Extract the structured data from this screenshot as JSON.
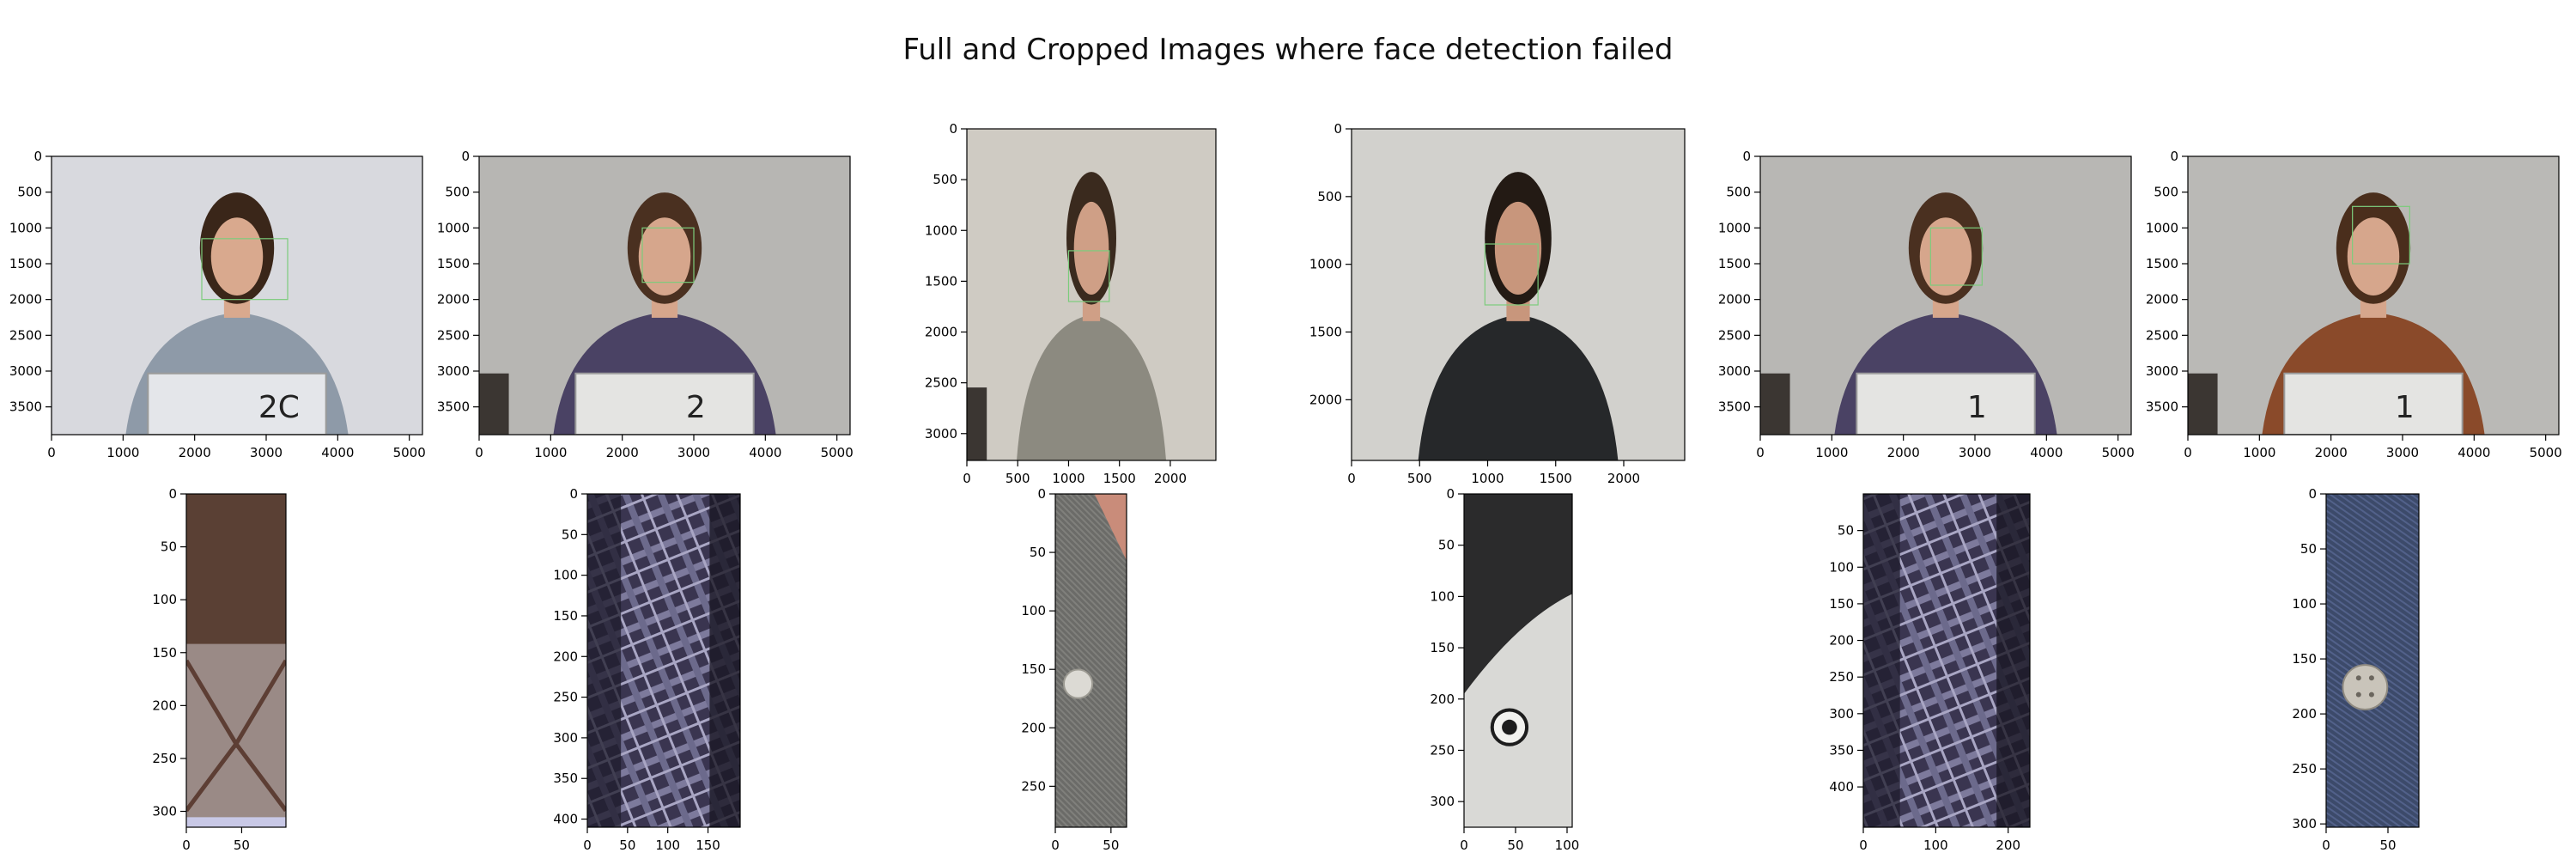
{
  "figure_title": "Full and Cropped Images where face detection failed",
  "colors": {
    "face_box": "#7ccc7c",
    "axis": "#000000"
  },
  "chart_data": [
    {
      "type": "image",
      "row": "full",
      "label": "full-1",
      "xlim": [
        0,
        5184
      ],
      "ylim": [
        3888,
        0
      ],
      "xticks": [
        0,
        1000,
        2000,
        3000,
        4000,
        5000
      ],
      "yticks": [
        0,
        500,
        1000,
        1500,
        2000,
        2500,
        3000,
        3500
      ],
      "scene": {
        "bg": "#d8d9de",
        "shirt": "#8e9aa8",
        "hair": "#3a2619",
        "skin": "#d9a98e",
        "board": "#e4e6ea",
        "board_text": "2C",
        "chair": false
      },
      "face_box": [
        2100,
        1150,
        3300,
        2000
      ]
    },
    {
      "type": "image",
      "row": "full",
      "label": "full-2",
      "xlim": [
        0,
        5184
      ],
      "ylim": [
        3888,
        0
      ],
      "xticks": [
        0,
        1000,
        2000,
        3000,
        4000,
        5000
      ],
      "yticks": [
        0,
        500,
        1000,
        1500,
        2000,
        2500,
        3000,
        3500
      ],
      "scene": {
        "bg": "#b7b6b3",
        "shirt": "#4a4264",
        "hair": "#4a3020",
        "skin": "#d6a68c",
        "board": "#e4e4e2",
        "board_text": "2",
        "chair": true
      },
      "face_box": [
        2280,
        1000,
        3000,
        1760
      ]
    },
    {
      "type": "image",
      "row": "full",
      "label": "full-3",
      "xlim": [
        0,
        2448
      ],
      "ylim": [
        3264,
        0
      ],
      "xticks": [
        0,
        500,
        1000,
        1500,
        2000
      ],
      "yticks": [
        0,
        500,
        1000,
        1500,
        2000,
        2500,
        3000
      ],
      "scene": {
        "bg": "#cfcbc3",
        "shirt": "#8c8a80",
        "hair": "#3a2a1e",
        "skin": "#cf9f86",
        "board": null,
        "board_text": "",
        "chair": true
      },
      "face_box": [
        1000,
        1200,
        1400,
        1700
      ]
    },
    {
      "type": "image",
      "row": "full",
      "label": "full-4",
      "xlim": [
        0,
        2448
      ],
      "ylim": [
        2448,
        0
      ],
      "xticks": [
        0,
        500,
        1000,
        1500,
        2000
      ],
      "yticks": [
        0,
        500,
        1000,
        1500,
        2000
      ],
      "scene": {
        "bg": "#d2d1cd",
        "shirt": "#26282a",
        "hair": "#231a14",
        "skin": "#c8967c",
        "board": null,
        "board_text": "",
        "chair": false
      },
      "face_box": [
        980,
        850,
        1370,
        1300
      ]
    },
    {
      "type": "image",
      "row": "full",
      "label": "full-5",
      "xlim": [
        0,
        5184
      ],
      "ylim": [
        3888,
        0
      ],
      "xticks": [
        0,
        1000,
        2000,
        3000,
        4000,
        5000
      ],
      "yticks": [
        0,
        500,
        1000,
        1500,
        2000,
        2500,
        3000,
        3500
      ],
      "scene": {
        "bg": "#b8b7b4",
        "shirt": "#4a4264",
        "hair": "#4a3020",
        "skin": "#d6a68c",
        "board": "#e4e4e2",
        "board_text": "1",
        "chair": true
      },
      "face_box": [
        2380,
        1000,
        3100,
        1800
      ]
    },
    {
      "type": "image",
      "row": "full",
      "label": "full-6",
      "xlim": [
        0,
        5184
      ],
      "ylim": [
        3888,
        0
      ],
      "xticks": [
        0,
        1000,
        2000,
        3000,
        4000,
        5000
      ],
      "yticks": [
        0,
        500,
        1000,
        1500,
        2000,
        2500,
        3000,
        3500
      ],
      "scene": {
        "bg": "#bab9b6",
        "shirt": "#8a4a2a",
        "hair": "#4a2e1c",
        "skin": "#d6a68c",
        "board": "#e4e4e2",
        "board_text": "1",
        "chair": true
      },
      "face_box": [
        2300,
        700,
        3100,
        1500
      ]
    },
    {
      "type": "image",
      "row": "crop",
      "label": "crop-1",
      "xlim": [
        0,
        90
      ],
      "ylim": [
        315,
        0
      ],
      "xticks": [
        0,
        50
      ],
      "yticks": [
        0,
        50,
        100,
        150,
        200,
        250,
        300
      ],
      "texture": "hair-diamond"
    },
    {
      "type": "image",
      "row": "crop",
      "label": "crop-2",
      "xlim": [
        0,
        190
      ],
      "ylim": [
        410,
        0
      ],
      "xticks": [
        0,
        50,
        100,
        150
      ],
      "yticks": [
        0,
        50,
        100,
        150,
        200,
        250,
        300,
        350,
        400
      ],
      "texture": "plaid"
    },
    {
      "type": "image",
      "row": "crop",
      "label": "crop-3",
      "xlim": [
        0,
        64
      ],
      "ylim": [
        285,
        0
      ],
      "xticks": [
        0,
        50
      ],
      "yticks": [
        0,
        50,
        100,
        150,
        200,
        250
      ],
      "texture": "grey-button"
    },
    {
      "type": "image",
      "row": "crop",
      "label": "crop-4",
      "xlim": [
        0,
        105
      ],
      "ylim": [
        325,
        0
      ],
      "xticks": [
        0,
        50,
        100
      ],
      "yticks": [
        0,
        50,
        100,
        150,
        200,
        250,
        300
      ],
      "texture": "tshirt-print"
    },
    {
      "type": "image",
      "row": "crop",
      "label": "crop-5",
      "xlim": [
        0,
        230
      ],
      "ylim": [
        455,
        0
      ],
      "xticks": [
        0,
        100,
        200
      ],
      "yticks": [
        50,
        100,
        150,
        200,
        250,
        300,
        350,
        400
      ],
      "texture": "plaid"
    },
    {
      "type": "image",
      "row": "crop",
      "label": "crop-6",
      "xlim": [
        0,
        75
      ],
      "ylim": [
        303,
        0
      ],
      "xticks": [
        0,
        50
      ],
      "yticks": [
        0,
        50,
        100,
        150,
        200,
        250,
        300
      ],
      "texture": "denim-button"
    }
  ]
}
